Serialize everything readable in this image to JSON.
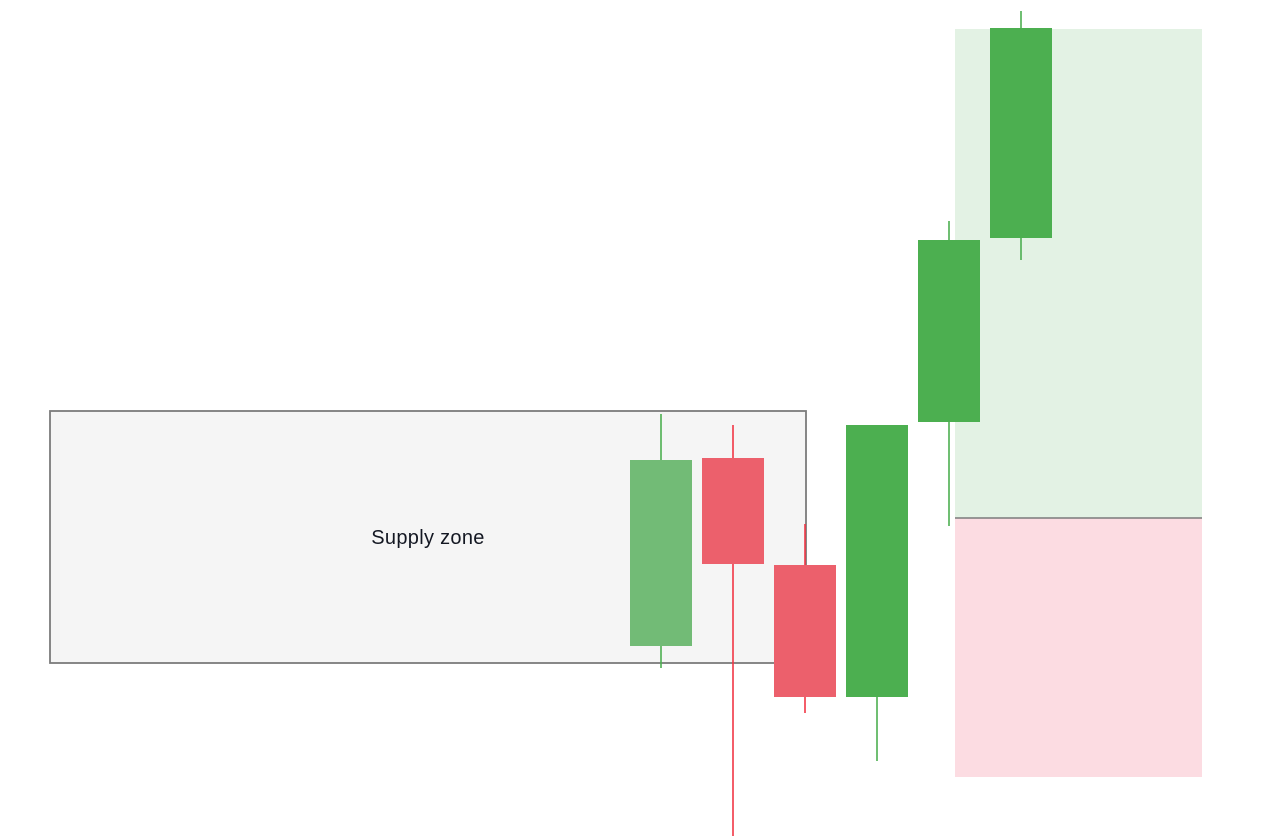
{
  "chart_data": {
    "type": "candlestick",
    "title": "",
    "xlabel": "",
    "ylabel": "",
    "grid": false,
    "ylim": [
      0,
      836
    ],
    "x_count": 15,
    "candles": [
      {
        "x": 8,
        "open": 190,
        "high": 422,
        "low": 168,
        "close": 376,
        "direction": "up",
        "style": "faded"
      },
      {
        "x": 9,
        "open": 378,
        "high": 411,
        "low": 0,
        "close": 272,
        "direction": "down",
        "style": "faded"
      },
      {
        "x": 10,
        "open": 271,
        "high": 312,
        "low": 123,
        "close": 139,
        "direction": "down",
        "style": "faded"
      },
      {
        "x": 11,
        "open": 139,
        "high": 411,
        "low": 75,
        "close": 411,
        "direction": "up",
        "style": "solid"
      },
      {
        "x": 12,
        "open": 414,
        "high": 615,
        "low": 310,
        "close": 596,
        "direction": "up",
        "style": "solid"
      },
      {
        "x": 13,
        "open": 598,
        "high": 825,
        "low": 576,
        "close": 808,
        "direction": "up",
        "style": "solid"
      }
    ],
    "zones": [
      {
        "label": "Supply zone",
        "kind": "supply",
        "from_x": 0,
        "to_x": 10.5,
        "top": 425,
        "bottom": 173
      }
    ],
    "position": {
      "from_x": 12,
      "to_x": 16,
      "entry": 318,
      "target": 807,
      "stop": 59
    },
    "colors": {
      "up": "#4caf50",
      "up_faded": "#72bb76",
      "down": "#f23645",
      "down_faded": "#ec606c",
      "zone_fill": "#f4f4f4",
      "zone_border": "#7b7b7b",
      "profit_fill": "#e3f2e4",
      "loss_fill": "#fcdce2",
      "entry_line": "#7b7b7b"
    }
  }
}
